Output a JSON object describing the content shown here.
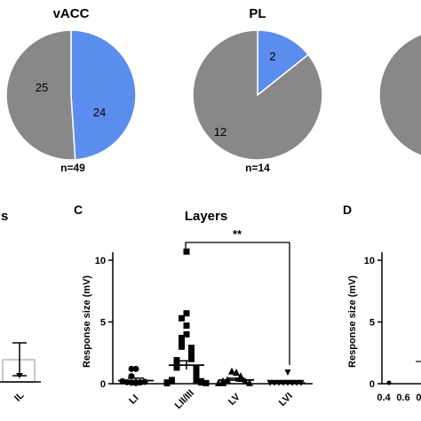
{
  "colors": {
    "grey": "#888888",
    "blue": "#5b8def",
    "black": "#000000",
    "bar_outline": "#c8c8c8"
  },
  "pies": [
    {
      "title": "vACC",
      "slices": [
        {
          "label": "24",
          "value": 24,
          "color": "blue"
        },
        {
          "label": "25",
          "value": 25,
          "color": "grey"
        }
      ],
      "n_label": "n=49"
    },
    {
      "title": "PL",
      "slices": [
        {
          "label": "2",
          "value": 2,
          "color": "blue"
        },
        {
          "label": "12",
          "value": 12,
          "color": "grey"
        }
      ],
      "n_label": "n=14"
    },
    {
      "title": "",
      "slices": [
        {
          "label": "",
          "value": 1,
          "color": "grey"
        }
      ],
      "n_label": ""
    }
  ],
  "panel_left": {
    "title_fragment": "s",
    "category": "IL",
    "bar_value": 2.0,
    "error_low": 0.6,
    "error_high": 3.3
  },
  "panel_c": {
    "letter": "C",
    "title": "Layers",
    "ylabel": "Response size (mV)",
    "ylim": [
      0,
      11
    ],
    "yticks": [
      0,
      5,
      10
    ],
    "significance": "**",
    "categories": [
      "LI",
      "LII/III",
      "LV",
      "LVI"
    ],
    "markers": [
      "circle",
      "square",
      "triangle",
      "triangle-down"
    ]
  },
  "panel_d": {
    "letter": "D",
    "ylabel": "Response size (mV)",
    "ylim": [
      0,
      11
    ],
    "yticks": [
      0,
      5,
      10
    ],
    "xtick_labels": [
      "0.4",
      "0.6",
      "0."
    ]
  },
  "chart_data": [
    {
      "type": "pie",
      "title": "vACC",
      "categories": [
        "blue",
        "grey"
      ],
      "values": [
        24,
        25
      ],
      "annotation": "n=49"
    },
    {
      "type": "pie",
      "title": "PL",
      "categories": [
        "blue",
        "grey"
      ],
      "values": [
        2,
        12
      ],
      "annotation": "n=14"
    },
    {
      "type": "scatter",
      "title": "Layers",
      "ylabel": "Response size (mV)",
      "ylim": [
        0,
        11
      ],
      "categories": [
        "LI",
        "LII/III",
        "LV",
        "LVI"
      ],
      "series": [
        {
          "category": "LI",
          "mean": 0.25,
          "sem": 0.2,
          "values": [
            0.05,
            0.08,
            0.1,
            0.12,
            0.15,
            0.2,
            0.6,
            1.2,
            1.2
          ]
        },
        {
          "category": "LII/III",
          "mean": 1.5,
          "sem": 0.35,
          "values": [
            10.7,
            5.7,
            5.3,
            4.7,
            4.0,
            3.7,
            3.3,
            3.0,
            2.9,
            2.7,
            2.5,
            2.3,
            2.2,
            2.0,
            1.9,
            1.8,
            1.6,
            1.5,
            1.4,
            1.3,
            1.2,
            1.1,
            1.0,
            0.9,
            0.8,
            0.7,
            0.6,
            0.5,
            0.4,
            0.3,
            0.3,
            0.2,
            0.2,
            0.1,
            0.1,
            0.05,
            0.05,
            0.05
          ]
        },
        {
          "category": "LV",
          "mean": 0.3,
          "sem": 0.15,
          "values": [
            0.9,
            1.0,
            0.6,
            0.5,
            0.4,
            0.3,
            0.2,
            0.2,
            0.1,
            0.05,
            0.05,
            0.05
          ]
        },
        {
          "category": "LVI",
          "mean": 0.05,
          "sem": 0.02,
          "values": [
            0.9,
            0.05,
            0.05,
            0.05,
            0.05,
            0.05,
            0.05,
            0.05,
            0.05
          ]
        }
      ],
      "significance": {
        "between": [
          "LII/III",
          "LVI"
        ],
        "label": "**"
      }
    }
  ]
}
